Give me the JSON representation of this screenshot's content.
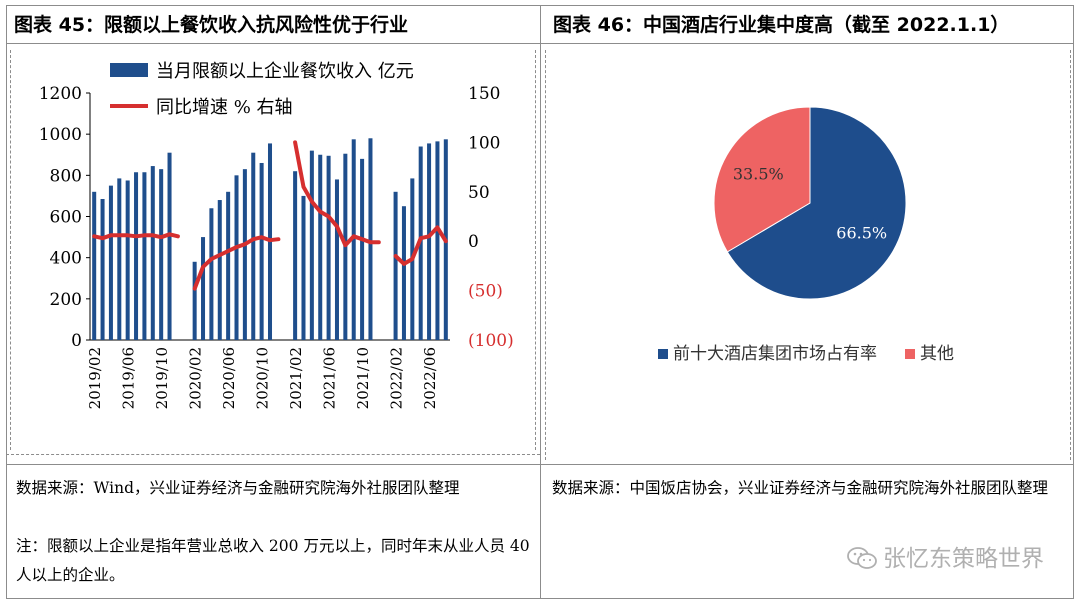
{
  "left_panel": {
    "title": "图表 45：限额以上餐饮收入抗风险性优于行业",
    "source": "数据来源：Wind，兴业证券经济与金融研究院海外社服团队整理",
    "note": "注：限额以上企业是指年营业总收入 200 万元以上，同时年末从业人员 40 人以上的企业。"
  },
  "right_panel": {
    "title": "图表 46：中国酒店行业集中度高（截至 2022.1.1）",
    "source": "数据来源：中国饭店协会，兴业证券经济与金融研究院海外社服团队整理"
  },
  "watermark": "张忆东策略世界",
  "chart_data": [
    {
      "type": "bar+line",
      "legend": [
        "当月限额以上企业餐饮收入 亿元",
        "同比增速 % 右轴"
      ],
      "legend_position": "top",
      "left_axis": {
        "ylim": [
          0,
          1200
        ],
        "ticks": [
          "0",
          "200",
          "400",
          "600",
          "800",
          "1000",
          "1200"
        ]
      },
      "right_axis": {
        "ylim": [
          -100,
          150
        ],
        "ticks": [
          "(100)",
          "(50)",
          "0",
          "50",
          "100",
          "150"
        ]
      },
      "x_tick_labels": [
        "2019/02",
        "2019/06",
        "2019/10",
        "2020/02",
        "2020/06",
        "2020/10",
        "2021/02",
        "2021/06",
        "2021/10",
        "2022/02",
        "2022/06"
      ],
      "series": [
        {
          "name": "当月限额以上企业餐饮收入 亿元",
          "type": "bar",
          "color": "#1f4e8c",
          "values": [
            720,
            685,
            750,
            785,
            775,
            815,
            815,
            845,
            830,
            910,
            null,
            null,
            380,
            500,
            640,
            680,
            720,
            800,
            830,
            910,
            860,
            955,
            null,
            null,
            820,
            700,
            920,
            900,
            895,
            780,
            905,
            975,
            880,
            980,
            null,
            null,
            720,
            650,
            785,
            940,
            955,
            965,
            975
          ]
        },
        {
          "name": "同比增速 % 右轴",
          "type": "line",
          "color": "#d62f2f",
          "values": [
            5,
            3,
            6,
            6,
            6,
            5,
            6,
            6,
            4,
            7,
            5,
            null,
            -48,
            -26,
            -18,
            -14,
            -10,
            -6,
            -3,
            2,
            4,
            1,
            2,
            null,
            100,
            55,
            40,
            30,
            25,
            15,
            -4,
            5,
            2,
            -1,
            -1,
            null,
            -15,
            -23,
            -18,
            3,
            5,
            14,
            0
          ]
        }
      ]
    },
    {
      "type": "pie",
      "slices": [
        {
          "label": "前十大酒店集团市场占有率",
          "value": 66.5,
          "display": "66.5%",
          "color": "#1e4d8c"
        },
        {
          "label": "其他",
          "value": 33.5,
          "display": "33.5%",
          "color": "#ee6363"
        }
      ],
      "legend_position": "bottom"
    }
  ]
}
